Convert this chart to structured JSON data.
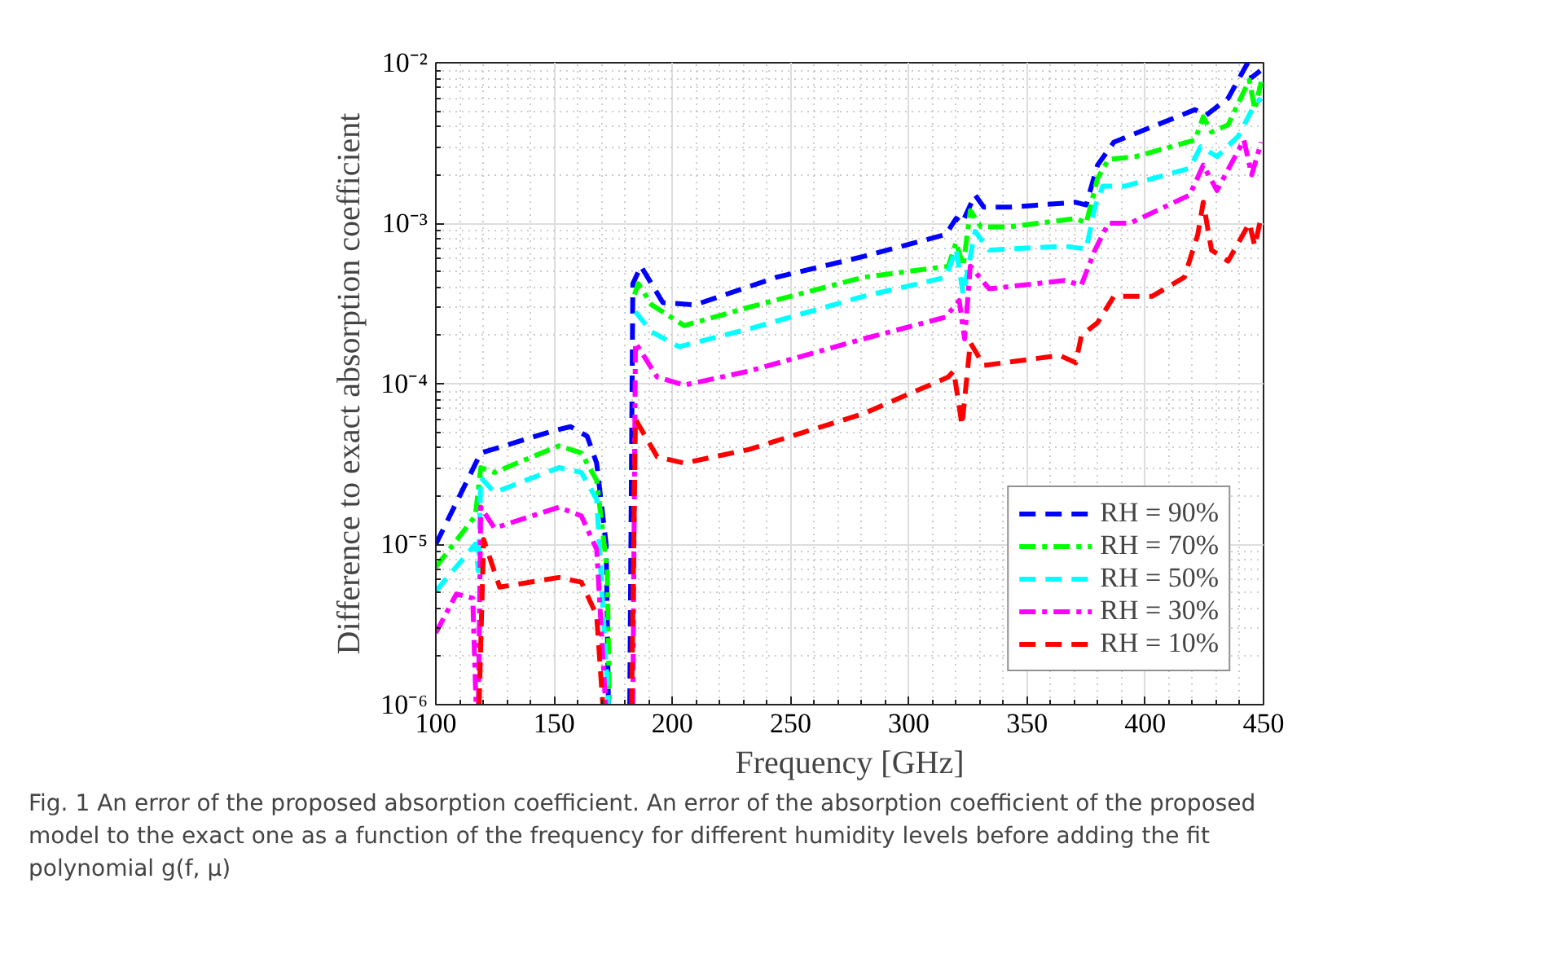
{
  "chart_data": {
    "type": "line",
    "xlabel": "Frequency [GHz]",
    "ylabel": "Difference to exact absorption coefficient",
    "log": true,
    "grid": true,
    "legend": "bottom right",
    "xlim": [
      100,
      450
    ],
    "xticks": [
      100,
      150,
      200,
      250,
      300,
      350,
      400,
      450
    ],
    "ylim": [
      1e-06,
      0.01
    ],
    "yticks": [
      {
        "value": 1e-06,
        "label": "10⁻⁶"
      },
      {
        "value": 1e-05,
        "label": "10⁻⁵"
      },
      {
        "value": 0.0001,
        "label": "10⁻⁴"
      },
      {
        "value": 0.001,
        "label": "10⁻³"
      },
      {
        "value": 0.01,
        "label": "10⁻²"
      }
    ],
    "annotations": [
      "Fig. 1  An error of the proposed absorption coefficient. An error of the absorption coefficient of the proposed model to the exact one as a function of the frequency for different humidity levels before adding the fit polynomial g(f, μ)"
    ],
    "series": [
      {
        "name": "RH = 90%",
        "color": "#0000ff",
        "line_style": "dashed",
        "x": [
          100,
          119,
          150,
          157,
          164,
          168,
          172,
          173,
          177,
          182,
          183.3,
          186.7,
          196,
          209.6,
          244,
          280.7,
          315.6,
          320,
          322.5,
          328,
          331.7,
          343,
          370.6,
          375,
          379.8,
          386.7,
          421,
          425.7,
          435,
          443,
          445,
          448.6
        ],
        "values": [
          1e-05,
          3.7e-05,
          5.1e-05,
          5.4e-05,
          4.7e-05,
          3.2e-05,
          1e-05,
          1e-06,
          null,
          1e-06,
          0.00042,
          0.00054,
          0.00032,
          0.00031,
          0.00046,
          0.00062,
          0.00085,
          0.00107,
          0.001,
          0.0015,
          0.00126,
          0.00126,
          0.00135,
          0.0013,
          0.0023,
          0.0032,
          0.0051,
          0.0047,
          0.006,
          0.0098,
          0.0081,
          0.0089
        ]
      },
      {
        "name": "RH = 70%",
        "color": "#00ff00",
        "line_style": "dashdot",
        "x": [
          100,
          116.7,
          119,
          124.8,
          152,
          161.5,
          168,
          172.5,
          173.4,
          178,
          182.8,
          184,
          185.6,
          191.3,
          205,
          232.6,
          280.7,
          316.7,
          320,
          323,
          326,
          330.5,
          343,
          370.6,
          375,
          379.8,
          384.4,
          395.9,
          421,
          424.5,
          428,
          435,
          444,
          446.3,
          449
        ],
        "values": [
          7.2e-06,
          1.5e-05,
          3e-05,
          2.8e-05,
          4.1e-05,
          3.7e-05,
          2.5e-05,
          6.8e-06,
          1e-06,
          null,
          null,
          0.00036,
          0.00042,
          0.00031,
          0.00023,
          0.0003,
          0.00046,
          0.00054,
          0.00076,
          0.00054,
          0.0012,
          0.00095,
          0.00095,
          0.00107,
          0.001,
          0.0019,
          0.0025,
          0.0026,
          0.0033,
          0.0046,
          0.0037,
          0.0041,
          0.0078,
          0.0051,
          0.0076
        ]
      },
      {
        "name": "RH = 50%",
        "color": "#00ffff",
        "line_style": "dashed",
        "x": [
          100,
          116.7,
          118,
          119,
          124.8,
          152,
          161.5,
          168,
          173,
          178,
          182.8,
          184.4,
          191.3,
          202.8,
          232.6,
          280.7,
          315.6,
          320,
          323,
          328,
          334,
          366,
          375,
          378.7,
          382,
          391.3,
          418.8,
          423.4,
          430.3,
          439.4,
          446.3,
          449
        ],
        "values": [
          5.1e-06,
          1e-05,
          6.8e-06,
          2.6e-05,
          2.1e-05,
          3e-05,
          2.8e-05,
          1.9e-05,
          1e-06,
          null,
          null,
          0.00028,
          0.00021,
          0.00017,
          0.00022,
          0.00035,
          0.00046,
          0.00069,
          0.00036,
          0.00089,
          0.00068,
          0.00072,
          0.00069,
          0.00126,
          0.0017,
          0.0017,
          0.0022,
          0.003,
          0.0026,
          0.0035,
          0.0055,
          0.006
        ]
      },
      {
        "name": "RH = 30%",
        "color": "#ff00ff",
        "line_style": "dashdot",
        "x": [
          100,
          108.7,
          115.6,
          117,
          117.5,
          118,
          119,
          124.8,
          152,
          161.5,
          168,
          171.8,
          177,
          183.3,
          184.4,
          193.6,
          205,
          232.6,
          280.7,
          315.6,
          321.3,
          323.6,
          326,
          334,
          366,
          372.9,
          378.7,
          384.4,
          393.6,
          418.8,
          424.5,
          430.3,
          441.7,
          445,
          449
        ],
        "values": [
          2.8e-06,
          4.9e-06,
          4.6e-06,
          1e-06,
          null,
          1e-06,
          1.7e-05,
          1.26e-05,
          1.7e-05,
          1.5e-05,
          9.3e-06,
          1e-06,
          null,
          1e-06,
          0.00018,
          0.00011,
          9.8e-05,
          0.00012,
          0.00019,
          0.00026,
          0.00033,
          0.00019,
          0.00054,
          0.00039,
          0.00044,
          0.00041,
          0.00068,
          0.001,
          0.001,
          0.0015,
          0.0023,
          0.0016,
          0.0033,
          0.002,
          0.0032
        ]
      },
      {
        "name": "RH = 10%",
        "color": "#ff0000",
        "line_style": "dashed",
        "x": [
          118.3,
          120.2,
          127,
          152,
          161.5,
          168,
          170.6,
          177,
          182.8,
          184.4,
          193.6,
          205,
          232.6,
          280.7,
          316.7,
          319,
          322.5,
          326,
          331.7,
          363.8,
          370.6,
          373,
          379.8,
          386.7,
          402.8,
          416.5,
          422.2,
          424.5,
          428,
          435,
          444,
          446.3,
          449
        ],
        "values": [
          1e-06,
          1.07e-05,
          5.4e-06,
          6.2e-06,
          5.8e-06,
          3.6e-06,
          1e-06,
          null,
          1e-06,
          6e-05,
          3.5e-05,
          3.2e-05,
          3.9e-05,
          6.5e-05,
          0.00011,
          0.00012,
          5.5e-05,
          0.00018,
          0.00013,
          0.00015,
          0.000135,
          0.0002,
          0.00024,
          0.00035,
          0.00035,
          0.00046,
          0.00085,
          0.00135,
          0.00068,
          0.00058,
          0.001,
          0.00072,
          0.0011
        ]
      }
    ]
  }
}
